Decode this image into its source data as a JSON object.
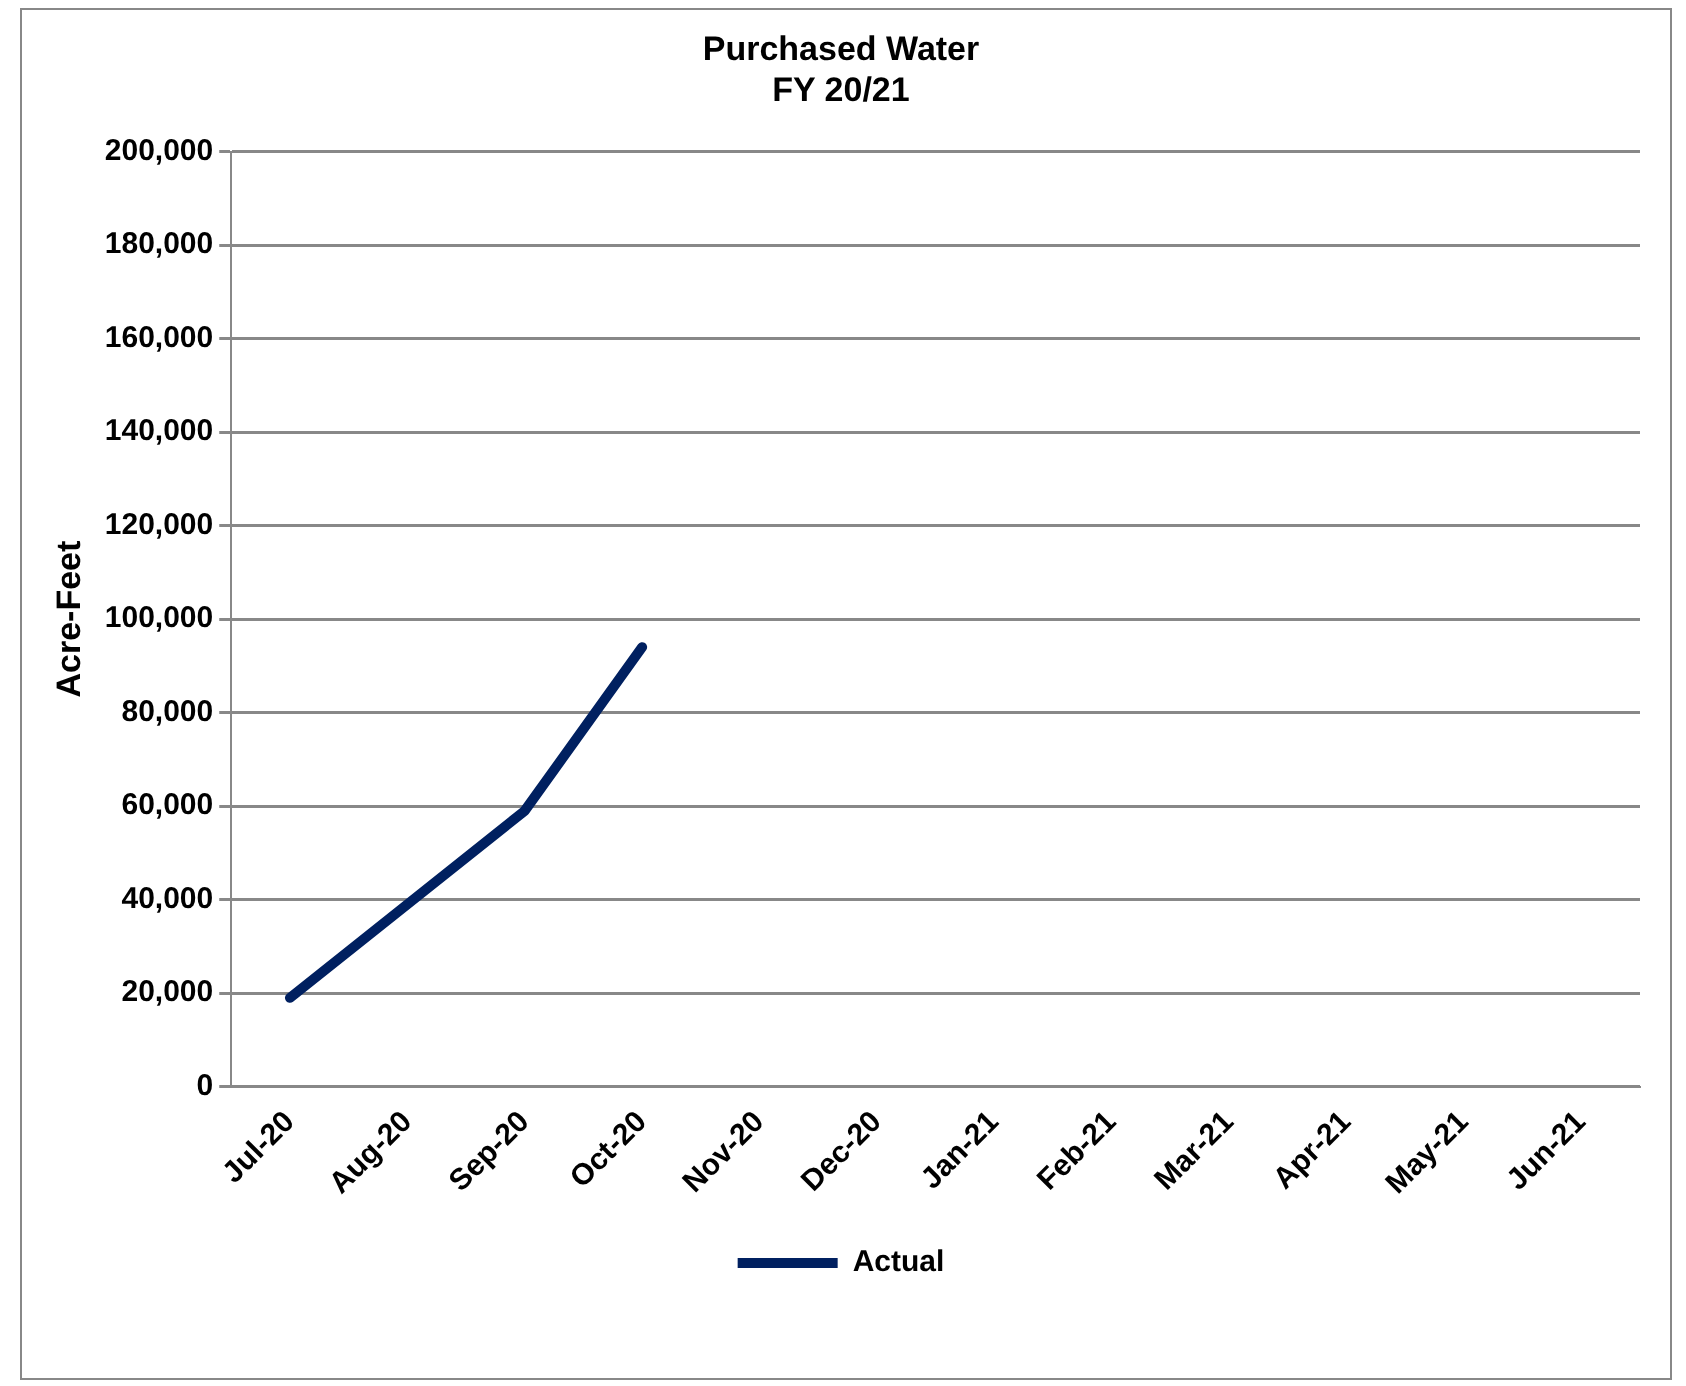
{
  "chart_data": {
    "type": "line",
    "title": "Purchased Water\nFY 20/21",
    "ylabel": "Acre-Feet",
    "categories": [
      "Jul-20",
      "Aug-20",
      "Sep-20",
      "Oct-20",
      "Nov-20",
      "Dec-20",
      "Jan-21",
      "Feb-21",
      "Mar-21",
      "Apr-21",
      "May-21",
      "Jun-21"
    ],
    "series": [
      {
        "name": "Actual",
        "color": "#002060",
        "values": [
          19000,
          39000,
          59000,
          94000,
          null,
          null,
          null,
          null,
          null,
          null,
          null,
          null
        ]
      }
    ],
    "ylim": [
      0,
      200000
    ],
    "yticks": [
      {
        "value": 0,
        "label": "0"
      },
      {
        "value": 20000,
        "label": "20,000"
      },
      {
        "value": 40000,
        "label": "40,000"
      },
      {
        "value": 60000,
        "label": "60,000"
      },
      {
        "value": 80000,
        "label": "80,000"
      },
      {
        "value": 100000,
        "label": "100,000"
      },
      {
        "value": 120000,
        "label": "120,000"
      },
      {
        "value": 140000,
        "label": "140,000"
      },
      {
        "value": 160000,
        "label": "160,000"
      },
      {
        "value": 180000,
        "label": "180,000"
      },
      {
        "value": 200000,
        "label": "200,000"
      }
    ],
    "grid": "y",
    "legend": "bottom",
    "marker": "none",
    "line_style": "solid"
  }
}
